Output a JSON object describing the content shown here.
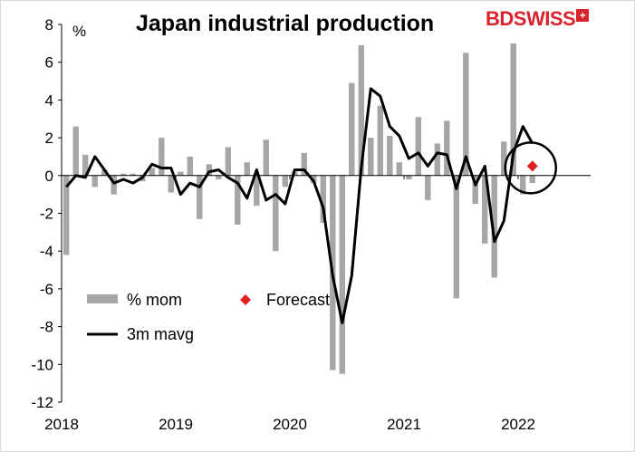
{
  "title": "Japan industrial production",
  "logo": {
    "text": "BDSWISS",
    "mark": "+"
  },
  "chart_data": {
    "type": "bar",
    "title": "Japan industrial production",
    "ylabel": "%",
    "ylim": [
      -12,
      8
    ],
    "yticks": [
      -12,
      -10,
      -8,
      -6,
      -4,
      -2,
      0,
      2,
      4,
      6,
      8
    ],
    "x_tick_labels": [
      "2018",
      "2019",
      "2020",
      "2021",
      "2022"
    ],
    "legend_position": "bottom-left",
    "start": "2018-01",
    "series": [
      {
        "name": "% mom",
        "kind": "bar",
        "color": "#a6a6a6",
        "values": [
          -4.2,
          2.6,
          1.1,
          -0.6,
          0.3,
          -1.0,
          0.1,
          0.1,
          -0.3,
          0.4,
          2.0,
          -0.9,
          0.2,
          1.0,
          -2.3,
          0.6,
          -0.2,
          1.5,
          -2.6,
          0.7,
          -1.6,
          1.9,
          -4.0,
          -0.6,
          0.2,
          1.2,
          -0.4,
          -2.5,
          -10.3,
          -10.5,
          4.9,
          6.9,
          2.0,
          3.7,
          2.1,
          0.7,
          -0.2,
          3.1,
          -1.3,
          1.7,
          2.9,
          -6.5,
          6.5,
          -1.5,
          -3.6,
          -5.4,
          1.8,
          7.0,
          -1.0,
          -0.4
        ]
      },
      {
        "name": "3m mavg",
        "kind": "line",
        "color": "#000000",
        "values": [
          -0.6,
          0.0,
          -0.1,
          1.0,
          0.3,
          -0.4,
          -0.2,
          -0.4,
          -0.1,
          0.6,
          0.4,
          0.4,
          -1.0,
          -0.4,
          -0.6,
          0.2,
          0.3,
          -0.1,
          -0.4,
          -1.2,
          0.3,
          -1.3,
          -1.0,
          -1.5,
          0.3,
          0.3,
          -0.3,
          -1.7,
          -5.3,
          -7.8,
          -5.3,
          0.4,
          4.6,
          4.2,
          2.6,
          2.1,
          0.9,
          1.2,
          0.5,
          1.2,
          1.1,
          -0.7,
          1.0,
          -0.5,
          0.5,
          -3.5,
          -2.4,
          1.2,
          2.6,
          1.7
        ]
      },
      {
        "name": "Forecast",
        "kind": "point",
        "color": "#e02020",
        "point": {
          "x": "2022-02",
          "y": 0.5
        }
      }
    ],
    "annotation": "circle around forecast point"
  }
}
